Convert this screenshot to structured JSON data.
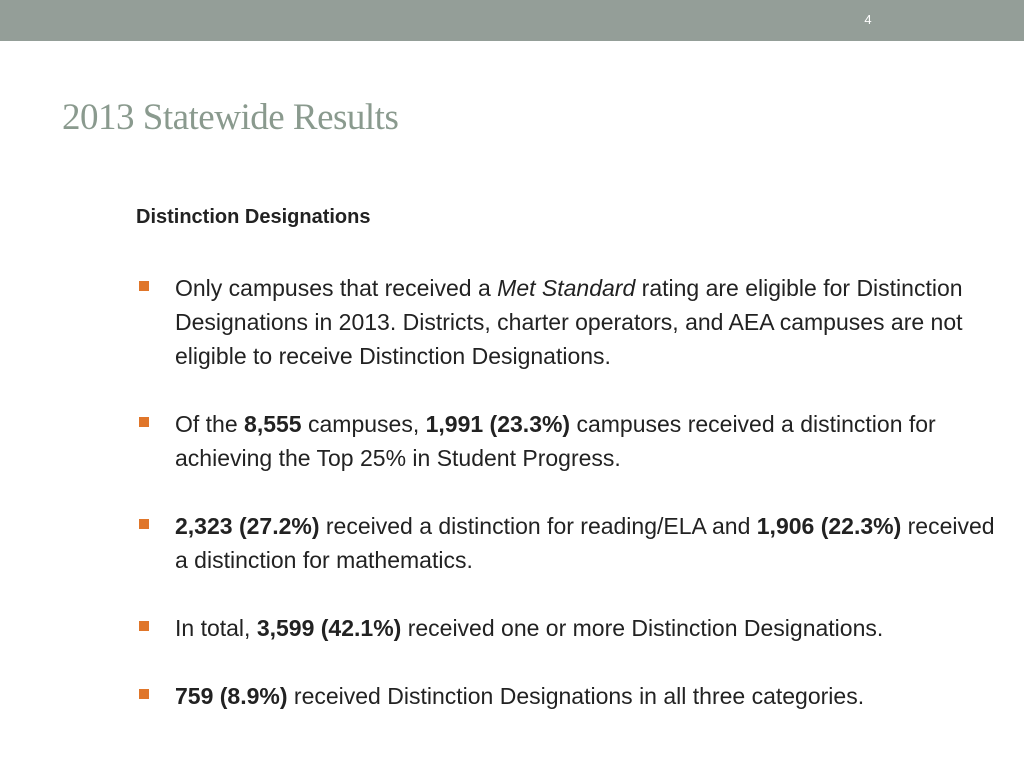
{
  "slide": {
    "number": "4",
    "title": "2013 Statewide Results"
  },
  "content": {
    "heading": "Distinction Designations",
    "bullets": [
      {
        "p1": "Only campuses that received a ",
        "em": "Met Standard",
        "p2": " rating are eligible for Distinction Designations in 2013. Districts, charter operators, and AEA campuses are not eligible to receive Distinction Designations."
      },
      {
        "p1": "Of the ",
        "b1": "8,555",
        "p2": " campuses, ",
        "b2": "1,991 (23.3%)",
        "p3": " campuses received a distinction for achieving the Top 25% in Student Progress."
      },
      {
        "b1": "2,323 (27.2%)",
        "p1": " received a distinction for reading/ELA and ",
        "b2": "1,906 (22.3%)",
        "p2": " received a distinction for mathematics."
      },
      {
        "p1": "In total, ",
        "b1": "3,599 (42.1%)",
        "p2": " received one or more Distinction Designations."
      },
      {
        "b1": "759 (8.9%)",
        "p1": " received Distinction Designations in all three categories."
      }
    ]
  },
  "colors": {
    "top_bar": "#949e98",
    "title": "#8a9a8e",
    "bullet": "#e0762a",
    "text": "#222222"
  }
}
